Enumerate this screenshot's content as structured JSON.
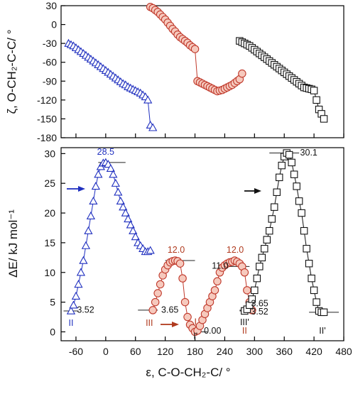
{
  "chart_data": [
    {
      "type": "scatter",
      "panel": "top",
      "ylabel": "ζ, O-CH₂-C-C/ °",
      "ylim": [
        -180,
        30
      ],
      "xlim": [
        -90,
        480
      ],
      "yticks": [
        30,
        0,
        -30,
        -60,
        -90,
        -120,
        -150,
        -180
      ],
      "ytick_labels": [
        "30",
        "0",
        "-30",
        "-60",
        "-90",
        "-120",
        "-150",
        "-180"
      ],
      "series": [
        {
          "marker": "triangle",
          "color": "#1f2fbf",
          "x": [
            -75,
            -70,
            -65,
            -60,
            -55,
            -50,
            -45,
            -40,
            -35,
            -30,
            -25,
            -20,
            -15,
            -10,
            -5,
            0,
            5,
            10,
            15,
            20,
            25,
            30,
            35,
            40,
            45,
            50,
            55,
            60,
            65,
            70,
            75,
            80,
            85,
            90,
            95
          ],
          "y": [
            -30,
            -32,
            -34,
            -37,
            -40,
            -43,
            -46,
            -49,
            -52,
            -55,
            -58,
            -61,
            -64,
            -67,
            -70,
            -73,
            -76,
            -79,
            -82,
            -85,
            -88,
            -91,
            -94,
            -96,
            -99,
            -101,
            -103,
            -105,
            -107,
            -109,
            -112,
            -115,
            -120,
            -160,
            -164
          ]
        },
        {
          "marker": "circle",
          "color": "#c0392b",
          "fill": "#f6c9bd",
          "x": [
            90,
            95,
            100,
            105,
            110,
            115,
            120,
            125,
            130,
            135,
            140,
            145,
            150,
            155,
            160,
            165,
            170,
            175,
            180,
            185,
            190,
            195,
            200,
            205,
            210,
            215,
            220,
            225,
            230,
            235,
            240,
            245,
            250,
            255,
            260,
            265,
            270,
            275
          ],
          "y": [
            28,
            26,
            23,
            20,
            16,
            12,
            8,
            3,
            -2,
            -7,
            -11,
            -16,
            -20,
            -23,
            -26,
            -29,
            -33,
            -36,
            -39,
            -90,
            -92,
            -94,
            -96,
            -98,
            -100,
            -102,
            -104,
            -106,
            -105,
            -104,
            -102,
            -100,
            -98,
            -96,
            -93,
            -90,
            -87,
            -78
          ]
        },
        {
          "marker": "square",
          "color": "#111111",
          "x": [
            270,
            275,
            280,
            285,
            290,
            295,
            300,
            305,
            310,
            315,
            320,
            325,
            330,
            335,
            340,
            345,
            350,
            355,
            360,
            365,
            370,
            375,
            380,
            385,
            390,
            395,
            400,
            405,
            410,
            415,
            420,
            425,
            430,
            435,
            440
          ],
          "y": [
            -26,
            -28,
            -30,
            -32,
            -34,
            -37,
            -40,
            -43,
            -46,
            -49,
            -52,
            -55,
            -58,
            -61,
            -64,
            -67,
            -70,
            -73,
            -76,
            -79,
            -82,
            -85,
            -88,
            -91,
            -94,
            -97,
            -100,
            -101,
            -102,
            -103,
            -105,
            -120,
            -135,
            -142,
            -150
          ]
        }
      ]
    },
    {
      "type": "scatter",
      "panel": "bottom",
      "xlabel": "ε, C-O-CH₂-C/ °",
      "ylabel": "ΔE/ kJ mol⁻¹",
      "xlim": [
        -90,
        480
      ],
      "ylim": [
        -1.5,
        31
      ],
      "xticks": [
        -60,
        0,
        60,
        120,
        180,
        240,
        300,
        360,
        420,
        480
      ],
      "xtick_labels": [
        "-60",
        "0",
        "60",
        "120",
        "180",
        "240",
        "300",
        "360",
        "420",
        "480"
      ],
      "yticks": [
        0,
        5,
        10,
        15,
        20,
        25,
        30
      ],
      "ytick_labels": [
        "0",
        "5",
        "10",
        "15",
        "20",
        "25",
        "30"
      ],
      "series": [
        {
          "marker": "triangle",
          "color": "#1f2fbf",
          "x": [
            -70,
            -65,
            -60,
            -55,
            -50,
            -45,
            -40,
            -35,
            -30,
            -25,
            -20,
            -15,
            -10,
            -5,
            0,
            5,
            10,
            15,
            20,
            25,
            30,
            35,
            40,
            45,
            50,
            55,
            60,
            65,
            70,
            75,
            80,
            85,
            90
          ],
          "y": [
            3.52,
            4.5,
            6,
            8,
            10,
            12,
            14.5,
            17,
            19.5,
            22,
            24.5,
            26.5,
            27.8,
            28.4,
            28.5,
            28.2,
            27.5,
            26.5,
            25,
            23.5,
            22,
            21,
            20,
            19,
            18,
            17,
            16,
            15,
            14.5,
            14,
            13.5,
            13.5,
            13.7
          ]
        },
        {
          "marker": "circle",
          "color": "#c0392b",
          "fill": "#f6c9bd",
          "x": [
            95,
            100,
            105,
            110,
            115,
            120,
            125,
            130,
            135,
            140,
            145,
            150,
            155,
            160,
            165,
            170,
            175,
            180,
            185,
            190,
            195,
            200,
            205,
            210,
            215,
            220,
            225,
            230,
            235,
            240,
            245,
            250,
            255,
            260,
            265,
            270,
            275,
            280,
            285,
            290,
            295
          ],
          "y": [
            3.65,
            5,
            6.5,
            8,
            9.5,
            10.5,
            11.2,
            11.7,
            11.9,
            12.0,
            11.9,
            11.5,
            9,
            5,
            2.5,
            1.2,
            0.6,
            0.0,
            0.2,
            1,
            2,
            3,
            4,
            5,
            6,
            7,
            8.5,
            10,
            10.8,
            11.2,
            11.5,
            11.7,
            11.8,
            12.0,
            11.8,
            11.5,
            11,
            10,
            7,
            5,
            3.65
          ]
        },
        {
          "marker": "square",
          "color": "#111111",
          "x": [
            280,
            285,
            290,
            295,
            300,
            305,
            310,
            315,
            320,
            325,
            330,
            335,
            340,
            345,
            350,
            355,
            360,
            365,
            370,
            375,
            380,
            385,
            390,
            395,
            400,
            405,
            410,
            415,
            420,
            425,
            430,
            435,
            440
          ],
          "y": [
            3.52,
            3.8,
            4.5,
            5.5,
            7,
            9,
            11,
            12.5,
            14,
            15.5,
            17,
            19,
            21,
            23.5,
            26,
            28,
            29.5,
            30.1,
            29.8,
            28.5,
            26.5,
            24.5,
            22,
            20,
            17,
            14,
            11.5,
            9,
            7,
            5,
            3.52,
            3.3,
            3.3
          ]
        }
      ],
      "annotations": [
        {
          "text": "28.5",
          "color": "#1f2fbf"
        },
        {
          "text": "3.52",
          "color": "#111111"
        },
        {
          "text": "II",
          "color": "#1f2fbf"
        },
        {
          "text": "12.0",
          "color": "#b03a1e"
        },
        {
          "text": "3.65",
          "color": "#111111"
        },
        {
          "text": "III",
          "color": "#b03a1e"
        },
        {
          "text": "0.00",
          "color": "#111111"
        },
        {
          "text": "I'",
          "color": "#111111"
        },
        {
          "text": "I",
          "color": "#b03a1e"
        },
        {
          "text": "11.0",
          "color": "#111111"
        },
        {
          "text": "12.0",
          "color": "#b03a1e"
        },
        {
          "text": "3.65",
          "color": "#111111"
        },
        {
          "text": "3.52",
          "color": "#111111"
        },
        {
          "text": "III'",
          "color": "#111111"
        },
        {
          "text": "II",
          "color": "#b03a1e"
        },
        {
          "text": "30.1",
          "color": "#111111"
        },
        {
          "text": "II'",
          "color": "#111111"
        }
      ]
    }
  ]
}
